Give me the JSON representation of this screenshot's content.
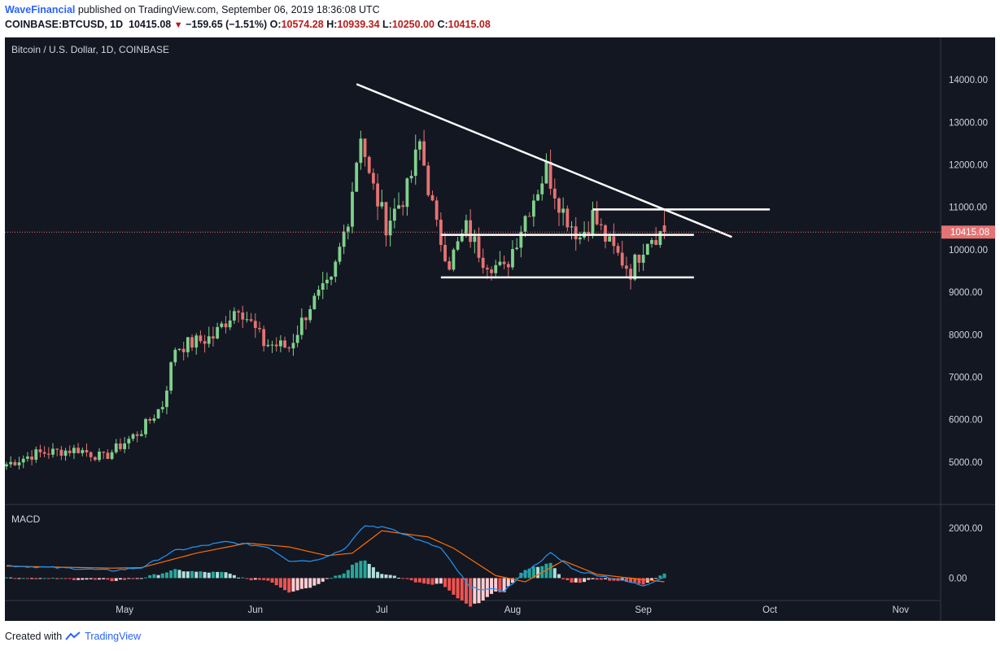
{
  "header": {
    "author": "WaveFinancial",
    "published_text": "published on TradingView.com, September 06, 2019 18:36:08 UTC",
    "symbol": "COINBASE:BTCUSD, 1D",
    "last": "10415.08",
    "change": "−159.65 (−1.51%)",
    "o_label": "O:",
    "o_value": "10574.28",
    "h_label": "H:",
    "h_value": "10939.34",
    "l_label": "L:",
    "l_value": "10250.00",
    "c_label": "C:",
    "c_value": "10415.08"
  },
  "footer": {
    "created_with": "Created with",
    "brand": "TradingView"
  },
  "colors": {
    "background": "#131722",
    "up": "#7fd18b",
    "down": "#e57373",
    "macd_line": "#2196f3",
    "signal_line": "#ff6d00",
    "hist_up_strong": "#26a69a",
    "hist_up_weak": "#b2dfdb",
    "hist_down_strong": "#ef5350",
    "hist_down_weak": "#ffcdd2",
    "price_line": "#e57373",
    "drawing": "#ffffff"
  },
  "chart_data": [
    {
      "type": "candlestick",
      "title": "Bitcoin / U.S. Dollar, 1D, COINBASE",
      "y_ticks": [
        "14000.00",
        "13000.00",
        "12000.00",
        "11000.00",
        "10000.00",
        "9000.00",
        "8000.00",
        "7000.00",
        "6000.00",
        "5000.00"
      ],
      "x_ticks": [
        "May",
        "Jun",
        "Jul",
        "Aug",
        "Sep",
        "Oct",
        "Nov"
      ],
      "ylim": [
        4000,
        15000
      ],
      "last_price_label": "10415.08",
      "x_start": "2019-04-03",
      "anchors": [
        [
          "2019-04-03",
          4950
        ],
        [
          "2019-04-10",
          5200
        ],
        [
          "2019-04-20",
          5300
        ],
        [
          "2019-04-26",
          5100
        ],
        [
          "2019-05-05",
          5750
        ],
        [
          "2019-05-10",
          6350
        ],
        [
          "2019-05-13",
          7700
        ],
        [
          "2019-05-17",
          7800
        ],
        [
          "2019-05-22",
          7950
        ],
        [
          "2019-05-28",
          8700
        ],
        [
          "2019-06-03",
          7800
        ],
        [
          "2019-06-09",
          7700
        ],
        [
          "2019-06-14",
          8700
        ],
        [
          "2019-06-19",
          9200
        ],
        [
          "2019-06-23",
          10800
        ],
        [
          "2019-06-26",
          12800
        ],
        [
          "2019-06-28",
          11700
        ],
        [
          "2019-07-02",
          10600
        ],
        [
          "2019-07-07",
          11400
        ],
        [
          "2019-07-10",
          12500
        ],
        [
          "2019-07-14",
          10500
        ],
        [
          "2019-07-17",
          9700
        ],
        [
          "2019-07-21",
          10500
        ],
        [
          "2019-07-25",
          9800
        ],
        [
          "2019-07-30",
          9500
        ],
        [
          "2019-08-04",
          10800
        ],
        [
          "2019-08-09",
          11900
        ],
        [
          "2019-08-13",
          10900
        ],
        [
          "2019-08-17",
          10300
        ],
        [
          "2019-08-20",
          10800
        ],
        [
          "2019-08-24",
          10100
        ],
        [
          "2019-08-29",
          9500
        ],
        [
          "2019-09-02",
          10300
        ],
        [
          "2019-09-06",
          10415
        ]
      ],
      "drawings": [
        {
          "type": "trendline",
          "from": [
            "2019-06-25",
            13900
          ],
          "to": [
            "2019-09-22",
            10300
          ]
        },
        {
          "type": "hline",
          "from": [
            "2019-07-15",
            10350
          ],
          "to": [
            "2019-09-13",
            10350
          ]
        },
        {
          "type": "hline",
          "from": [
            "2019-07-15",
            9350
          ],
          "to": [
            "2019-09-13",
            9350
          ]
        },
        {
          "type": "hline",
          "from": [
            "2019-08-20",
            10950
          ],
          "to": [
            "2019-10-01",
            10950
          ]
        }
      ]
    },
    {
      "type": "macd",
      "title": "MACD",
      "y_ticks": [
        "2000.00",
        "0.00"
      ],
      "ylim": [
        -900,
        2950
      ],
      "macd_anchors": [
        [
          "2019-04-03",
          500
        ],
        [
          "2019-04-20",
          380
        ],
        [
          "2019-04-28",
          300
        ],
        [
          "2019-05-05",
          420
        ],
        [
          "2019-05-13",
          1100
        ],
        [
          "2019-05-18",
          1250
        ],
        [
          "2019-05-25",
          1450
        ],
        [
          "2019-06-04",
          1250
        ],
        [
          "2019-06-09",
          700
        ],
        [
          "2019-06-15",
          700
        ],
        [
          "2019-06-22",
          1150
        ],
        [
          "2019-06-27",
          2100
        ],
        [
          "2019-07-03",
          2000
        ],
        [
          "2019-07-10",
          1500
        ],
        [
          "2019-07-15",
          1200
        ],
        [
          "2019-07-22",
          -400
        ],
        [
          "2019-07-30",
          -500
        ],
        [
          "2019-08-05",
          350
        ],
        [
          "2019-08-10",
          1000
        ],
        [
          "2019-08-16",
          300
        ],
        [
          "2019-08-26",
          -50
        ],
        [
          "2019-09-01",
          -300
        ],
        [
          "2019-09-06",
          50
        ]
      ],
      "signal_anchors": [
        [
          "2019-04-03",
          480
        ],
        [
          "2019-04-28",
          400
        ],
        [
          "2019-05-05",
          420
        ],
        [
          "2019-05-18",
          1000
        ],
        [
          "2019-05-30",
          1400
        ],
        [
          "2019-06-09",
          1250
        ],
        [
          "2019-06-18",
          900
        ],
        [
          "2019-06-24",
          1000
        ],
        [
          "2019-07-01",
          1900
        ],
        [
          "2019-07-12",
          1650
        ],
        [
          "2019-07-18",
          1200
        ],
        [
          "2019-07-28",
          100
        ],
        [
          "2019-08-04",
          -150
        ],
        [
          "2019-08-13",
          700
        ],
        [
          "2019-08-21",
          150
        ],
        [
          "2019-09-06",
          -150
        ]
      ]
    }
  ]
}
